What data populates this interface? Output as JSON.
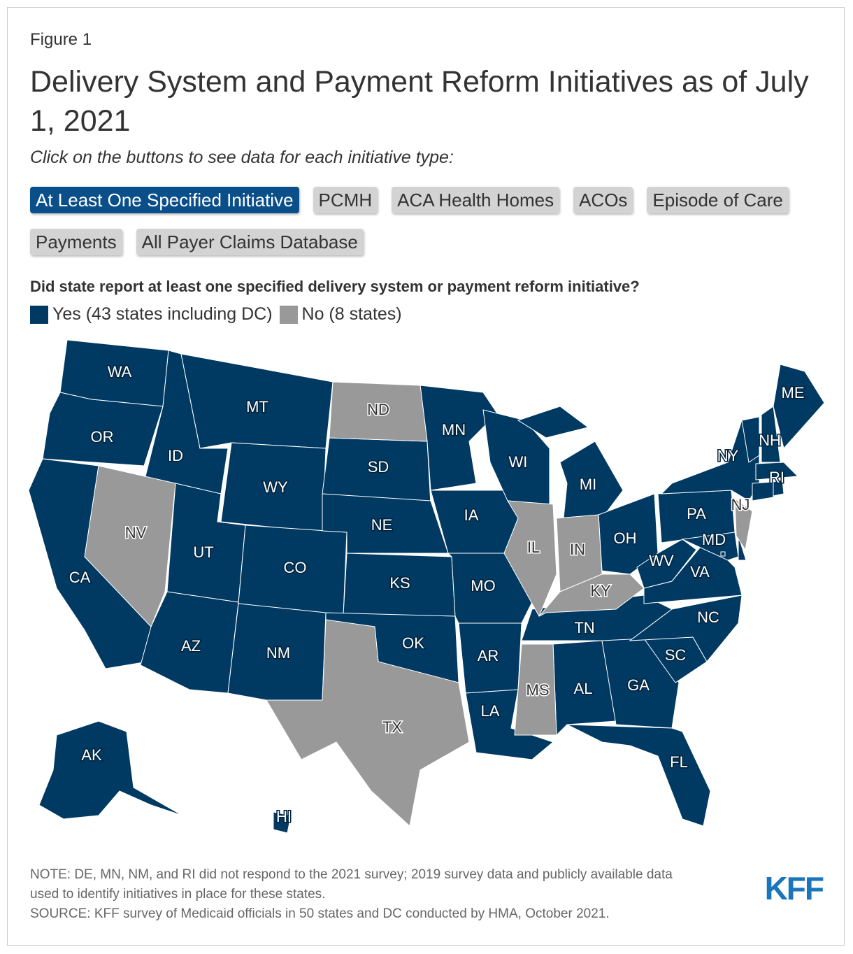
{
  "figure_label": "Figure 1",
  "title": "Delivery System and Payment Reform Initiatives as of July 1, 2021",
  "instruction": "Click on the buttons to see data for each initiative type:",
  "buttons": [
    "At Least One Specified Initiative",
    "PCMH",
    "ACA Health Homes",
    "ACOs",
    "Episode of Care Payments",
    "All Payer Claims Database"
  ],
  "question": "Did state report at least one specified delivery system or payment reform initiative?",
  "legend": [
    {
      "label": "Yes (43 states including DC)",
      "color": "#003a63",
      "states": [
        "WA",
        "OR",
        "CA",
        "ID",
        "MT",
        "WY",
        "UT",
        "AZ",
        "CO",
        "NM",
        "SD",
        "NE",
        "KS",
        "OK",
        "MN",
        "IA",
        "MO",
        "AR",
        "LA",
        "WI",
        "MI",
        "OH",
        "TN",
        "AL",
        "GA",
        "FL",
        "SC",
        "NC",
        "VA",
        "WV",
        "PA",
        "MD",
        "DE",
        "NY",
        "VT",
        "NH",
        "ME",
        "MA",
        "CT",
        "RI",
        "AK",
        "HI",
        "DC"
      ]
    },
    {
      "label": "No (8 states)",
      "color": "#999999",
      "states": [
        "NV",
        "ND",
        "TX",
        "IL",
        "IN",
        "KY",
        "MS",
        "NJ"
      ]
    }
  ],
  "notes": [
    "NOTE: DE, MN, NM, and RI did not respond to the 2021 survey; 2019 survey data and publicly available data used to identify initiatives in place for these states.",
    "SOURCE: KFF survey of Medicaid officials in 50 states and DC conducted by HMA, October 2021."
  ],
  "logo": "KFF"
}
